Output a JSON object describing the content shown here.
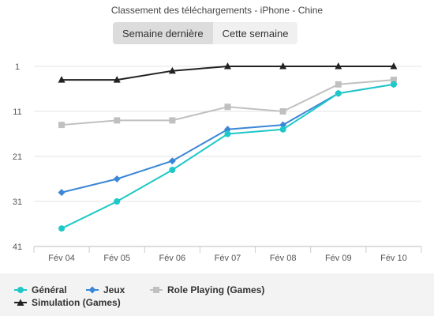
{
  "chart_data": {
    "type": "line",
    "title": "Classement des téléchargements - iPhone - Chine",
    "toggle": [
      "Semaine dernière",
      "Cette semaine"
    ],
    "active_toggle": 0,
    "categories": [
      "Fév 04",
      "Fév 05",
      "Fév 06",
      "Fév 07",
      "Fév 08",
      "Fév 09",
      "Fév 10"
    ],
    "y_ticks": [
      1,
      11,
      21,
      31,
      41
    ],
    "ylim": [
      1,
      41
    ],
    "y_reversed": true,
    "grid": "horizontal",
    "legend_position": "bottom",
    "series": [
      {
        "name": "Général",
        "color": "#1ec8c8",
        "marker": "circle",
        "values": [
          37,
          31,
          24,
          16,
          15,
          7,
          5
        ]
      },
      {
        "name": "Jeux",
        "color": "#3a87d6",
        "marker": "diamond",
        "values": [
          29,
          26,
          22,
          15,
          14,
          7,
          5
        ]
      },
      {
        "name": "Role Playing (Games)",
        "color": "#c0c0c0",
        "marker": "square",
        "values": [
          14,
          13,
          13,
          10,
          11,
          5,
          4
        ]
      },
      {
        "name": "Simulation (Games)",
        "color": "#222222",
        "marker": "triangle",
        "values": [
          4,
          4,
          2,
          1,
          1,
          1,
          1
        ]
      }
    ]
  }
}
